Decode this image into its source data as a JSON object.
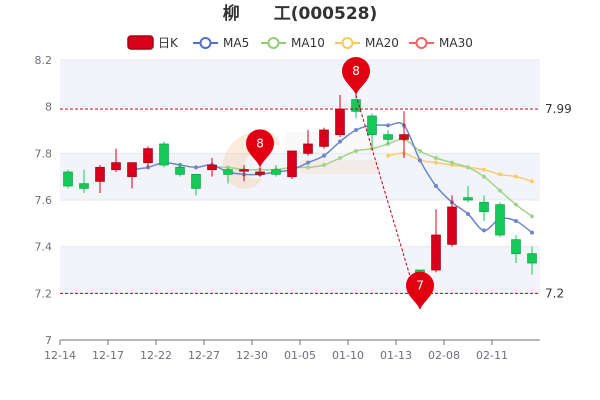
{
  "chart_data": {
    "type": "candlestick",
    "title": "柳　　工(000528)",
    "legend": [
      {
        "name": "日K",
        "color": "#d9001b",
        "kind": "candle"
      },
      {
        "name": "MA5",
        "color": "#5470c6",
        "kind": "line"
      },
      {
        "name": "MA10",
        "color": "#91cc75",
        "kind": "line"
      },
      {
        "name": "MA20",
        "color": "#fac858",
        "kind": "line"
      },
      {
        "name": "MA30",
        "color": "#ee6666",
        "kind": "line"
      }
    ],
    "ylim": [
      7.0,
      8.2
    ],
    "yticks": [
      "7",
      "7.2",
      "7.4",
      "7.6",
      "7.8",
      "8",
      "8.2"
    ],
    "xticks": [
      {
        "i": 0,
        "label": "12-14"
      },
      {
        "i": 3,
        "label": "12-17"
      },
      {
        "i": 6,
        "label": "12-22"
      },
      {
        "i": 9,
        "label": "12-27"
      },
      {
        "i": 12,
        "label": "12-30"
      },
      {
        "i": 15,
        "label": "01-05"
      },
      {
        "i": 18,
        "label": "01-10"
      },
      {
        "i": 21,
        "label": "01-13"
      },
      {
        "i": 24,
        "label": "02-08"
      },
      {
        "i": 27,
        "label": "02-11"
      }
    ],
    "colors": {
      "up": "#d9001b",
      "down": "#14c958",
      "ma5": "#6b86c9",
      "ma10": "#a3d38a",
      "ma20": "#f5cd6e",
      "ref": "#b5001b"
    },
    "ref_lines": [
      {
        "value": 7.99,
        "label": "7.99"
      },
      {
        "value": 7.2,
        "label": "7.2"
      }
    ],
    "markers": [
      {
        "i": 18,
        "price": 8.05,
        "label": "8"
      },
      {
        "i": 12,
        "price": 7.74,
        "label": "8"
      },
      {
        "i": 22,
        "price": 7.13,
        "label": "7"
      }
    ],
    "candles": [
      {
        "o": 7.72,
        "c": 7.66,
        "h": 7.73,
        "l": 7.65
      },
      {
        "o": 7.67,
        "c": 7.65,
        "h": 7.73,
        "l": 7.63
      },
      {
        "o": 7.68,
        "c": 7.74,
        "h": 7.75,
        "l": 7.63
      },
      {
        "o": 7.73,
        "c": 7.76,
        "h": 7.82,
        "l": 7.72
      },
      {
        "o": 7.7,
        "c": 7.76,
        "h": 7.76,
        "l": 7.65
      },
      {
        "o": 7.76,
        "c": 7.82,
        "h": 7.83,
        "l": 7.74
      },
      {
        "o": 7.84,
        "c": 7.75,
        "h": 7.85,
        "l": 7.74
      },
      {
        "o": 7.74,
        "c": 7.71,
        "h": 7.76,
        "l": 7.7
      },
      {
        "o": 7.71,
        "c": 7.65,
        "h": 7.71,
        "l": 7.62
      },
      {
        "o": 7.73,
        "c": 7.75,
        "h": 7.78,
        "l": 7.7
      },
      {
        "o": 7.73,
        "c": 7.71,
        "h": 7.74,
        "l": 7.67
      },
      {
        "o": 7.73,
        "c": 7.73,
        "h": 7.75,
        "l": 7.68
      },
      {
        "o": 7.71,
        "c": 7.72,
        "h": 7.74,
        "l": 7.7
      },
      {
        "o": 7.73,
        "c": 7.71,
        "h": 7.75,
        "l": 7.7
      },
      {
        "o": 7.7,
        "c": 7.81,
        "h": 7.81,
        "l": 7.69
      },
      {
        "o": 7.8,
        "c": 7.84,
        "h": 7.9,
        "l": 7.79
      },
      {
        "o": 7.83,
        "c": 7.9,
        "h": 7.91,
        "l": 7.82
      },
      {
        "o": 7.88,
        "c": 7.99,
        "h": 8.05,
        "l": 7.87
      },
      {
        "o": 8.03,
        "c": 7.98,
        "h": 8.06,
        "l": 7.95
      },
      {
        "o": 7.96,
        "c": 7.88,
        "h": 7.97,
        "l": 7.82
      },
      {
        "o": 7.88,
        "c": 7.86,
        "h": 7.9,
        "l": 7.84
      },
      {
        "o": 7.86,
        "c": 7.88,
        "h": 7.98,
        "l": 7.78
      },
      {
        "o": 7.3,
        "c": 7.26,
        "h": 7.3,
        "l": 7.14
      },
      {
        "o": 7.3,
        "c": 7.45,
        "h": 7.56,
        "l": 7.29
      },
      {
        "o": 7.41,
        "c": 7.57,
        "h": 7.62,
        "l": 7.4
      },
      {
        "o": 7.61,
        "c": 7.6,
        "h": 7.66,
        "l": 7.59
      },
      {
        "o": 7.59,
        "c": 7.55,
        "h": 7.62,
        "l": 7.51
      },
      {
        "o": 7.58,
        "c": 7.45,
        "h": 7.59,
        "l": 7.44
      },
      {
        "o": 7.43,
        "c": 7.37,
        "h": 7.45,
        "l": 7.33
      },
      {
        "o": 7.37,
        "c": 7.33,
        "h": 7.4,
        "l": 7.28
      }
    ],
    "ma5": [
      null,
      null,
      null,
      null,
      7.73,
      7.74,
      7.76,
      7.75,
      7.74,
      7.75,
      7.72,
      7.71,
      7.71,
      7.72,
      7.73,
      7.76,
      7.79,
      7.85,
      7.9,
      7.92,
      7.92,
      7.92,
      7.77,
      7.66,
      7.59,
      7.54,
      7.47,
      7.52,
      7.51,
      7.46
    ],
    "ma10": [
      null,
      null,
      null,
      null,
      null,
      null,
      null,
      null,
      null,
      7.74,
      7.74,
      7.73,
      7.73,
      7.73,
      7.74,
      7.74,
      7.75,
      7.78,
      7.81,
      7.82,
      7.84,
      7.86,
      7.81,
      7.78,
      7.76,
      7.74,
      7.7,
      7.64,
      7.58,
      7.53
    ],
    "ma20": [
      null,
      null,
      null,
      null,
      null,
      null,
      null,
      null,
      null,
      null,
      null,
      null,
      null,
      null,
      null,
      null,
      null,
      null,
      null,
      null,
      7.79,
      7.8,
      7.77,
      7.76,
      7.75,
      7.74,
      7.73,
      7.71,
      7.7,
      7.68
    ]
  }
}
